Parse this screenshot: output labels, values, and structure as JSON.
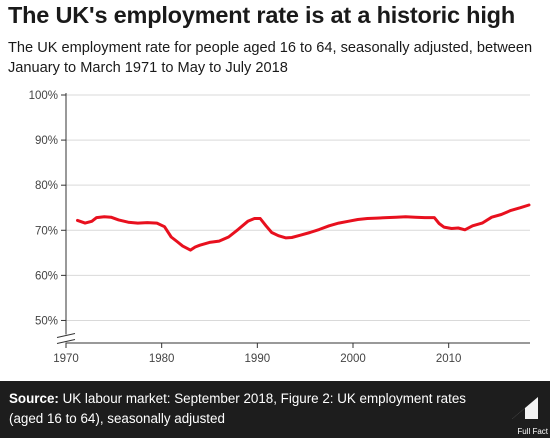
{
  "header": {
    "title": "The UK's employment rate is at a historic high",
    "subtitle": "The UK employment rate for people aged 16 to 64, seasonally adjusted, between January to March 1971 to May to July 2018"
  },
  "footer": {
    "source_label": "Source:",
    "source_text": "UK labour market: September 2018, Figure 2: UK employment rates (aged 16 to 64), seasonally adjusted",
    "brand": "Full Fact"
  },
  "colors": {
    "line": "#e8101e",
    "axis": "#333333",
    "grid": "#d9d9d9",
    "footer_bg": "#1d1d1d"
  },
  "chart_data": {
    "type": "line",
    "title": "",
    "xlabel": "",
    "ylabel": "",
    "xlim": [
      1970,
      2018.5
    ],
    "ylim": [
      45,
      100
    ],
    "y_axis_break": true,
    "grid": true,
    "x_ticks": [
      1970,
      1980,
      1990,
      2000,
      2010
    ],
    "x_tick_labels": [
      "1970",
      "1980",
      "1990",
      "2000",
      "2010"
    ],
    "y_ticks": [
      50,
      60,
      70,
      80,
      90,
      100
    ],
    "y_tick_labels": [
      "50%",
      "60%",
      "70%",
      "80%",
      "90%",
      "100%"
    ],
    "series": [
      {
        "color": "#e8101e",
        "x": [
          1971.2,
          1972.0,
          1972.7,
          1973.2,
          1974.0,
          1974.7,
          1975.5,
          1976.5,
          1977.5,
          1978.5,
          1979.5,
          1980.3,
          1981.0,
          1981.6,
          1982.2,
          1983.0,
          1983.5,
          1984.0,
          1985.0,
          1986.0,
          1987.0,
          1988.0,
          1989.0,
          1989.7,
          1990.3,
          1990.9,
          1991.5,
          1992.2,
          1993.0,
          1993.6,
          1994.5,
          1995.5,
          1996.5,
          1997.5,
          1998.5,
          1999.5,
          2000.5,
          2001.5,
          2002.5,
          2003.5,
          2004.5,
          2005.5,
          2006.5,
          2007.5,
          2008.5,
          2009.0,
          2009.5,
          2010.3,
          2011.0,
          2011.7,
          2012.5,
          2013.5,
          2014.5,
          2015.5,
          2016.5,
          2017.5,
          2018.4
        ],
        "y": [
          72.2,
          71.6,
          72.0,
          72.8,
          73.0,
          72.9,
          72.3,
          71.8,
          71.6,
          71.7,
          71.6,
          70.8,
          68.5,
          67.5,
          66.5,
          65.6,
          66.3,
          66.7,
          67.3,
          67.6,
          68.5,
          70.2,
          72.0,
          72.6,
          72.6,
          71.0,
          69.5,
          68.8,
          68.3,
          68.4,
          68.9,
          69.5,
          70.2,
          71.0,
          71.6,
          72.0,
          72.4,
          72.6,
          72.7,
          72.8,
          72.9,
          73.0,
          72.9,
          72.8,
          72.8,
          71.5,
          70.7,
          70.4,
          70.5,
          70.1,
          71.0,
          71.6,
          72.9,
          73.5,
          74.4,
          75.0,
          75.6
        ]
      }
    ]
  }
}
